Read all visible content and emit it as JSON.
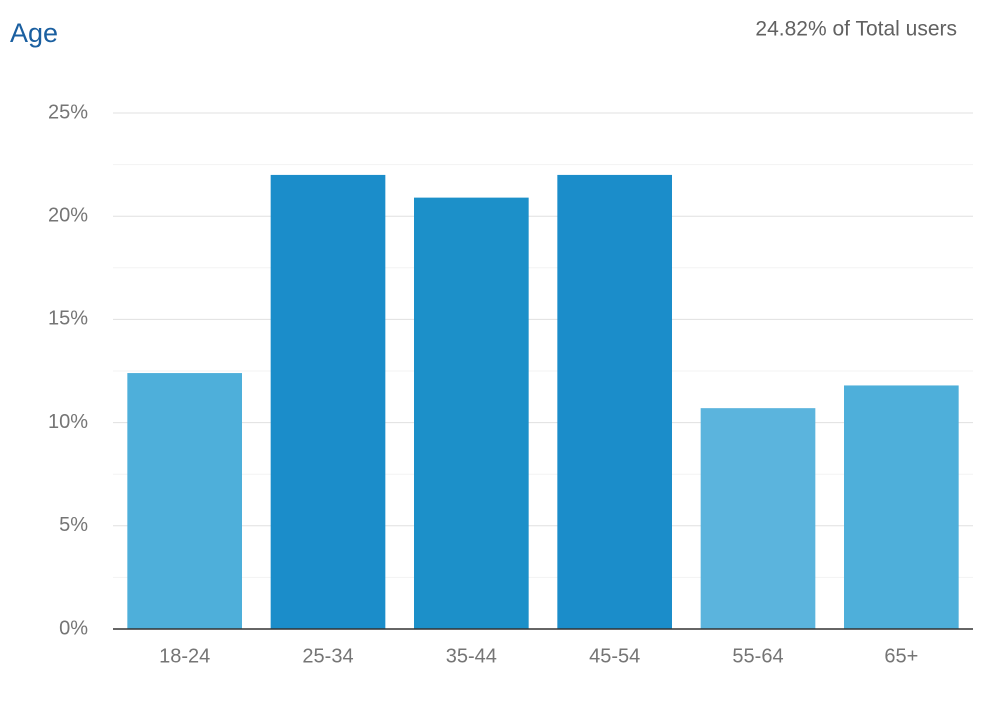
{
  "chart_data": {
    "type": "bar",
    "title": "Age",
    "subtitle": "24.82% of Total users",
    "categories": [
      "18-24",
      "25-34",
      "35-44",
      "45-54",
      "55-64",
      "65+"
    ],
    "values": [
      12.4,
      22.0,
      20.9,
      22.0,
      10.7,
      11.8
    ],
    "colors": [
      "#4eafda",
      "#1b8dca",
      "#1c90c9",
      "#1b8dca",
      "#5bb4dd",
      "#4eafda"
    ],
    "ylim": [
      0,
      25
    ],
    "yticks": [
      {
        "value": 0,
        "label": "0%"
      },
      {
        "value": 5,
        "label": "5%"
      },
      {
        "value": 10,
        "label": "10%"
      },
      {
        "value": 15,
        "label": "15%"
      },
      {
        "value": 20,
        "label": "20%"
      },
      {
        "value": 25,
        "label": "25%"
      }
    ],
    "minor_yticks": [
      2.5,
      7.5,
      12.5,
      17.5,
      22.5
    ],
    "grid": true
  }
}
